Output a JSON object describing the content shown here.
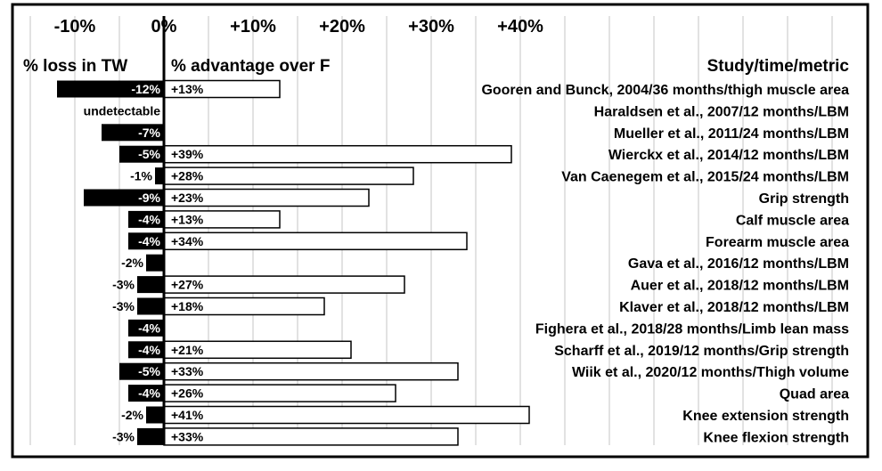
{
  "chart_data": {
    "type": "bar",
    "orientation": "horizontal",
    "x_tick_labels": [
      "-10%",
      "0%",
      "+10%",
      "+20%",
      "+30%",
      "+40%"
    ],
    "x_ticks": [
      -10,
      0,
      10,
      20,
      30,
      40
    ],
    "xlim": [
      -15,
      78
    ],
    "grid": "vertical",
    "header_left": "% loss in TW",
    "header_middle": "% advantage over F",
    "header_right": "Study/time/metric",
    "categories": [
      "Gooren and Bunck, 2004/36 months/thigh muscle area",
      "Haraldsen et al., 2007/12 months/LBM",
      "Mueller et al., 2011/24 months/LBM",
      "Wierckx et al., 2014/12 months/LBM",
      "Van Caenegem et al., 2015/24 months/LBM",
      "Grip strength",
      "Calf muscle area",
      "Forearm muscle area",
      "Gava et al., 2016/12 months/LBM",
      "Auer et al., 2018/12 months/LBM",
      "Klaver et al., 2018/12 months/LBM",
      "Fighera et al., 2018/28 months/Limb lean mass",
      "Scharff et al., 2019/12 months/Grip strength",
      "Wiik et al., 2020/12 months/Thigh volume",
      "Quad area",
      "Knee extension strength",
      "Knee flexion strength"
    ],
    "series": [
      {
        "name": "% loss in TW",
        "color": "#000000",
        "values": [
          -12,
          null,
          -7,
          -5,
          -1,
          -9,
          -4,
          -4,
          -2,
          -3,
          -3,
          -4,
          -4,
          -5,
          -4,
          -2,
          -3
        ],
        "labels": [
          "-12%",
          "undetectable",
          "-7%",
          "-5%",
          "-1%",
          "-9%",
          "-4%",
          "-4%",
          "-2%",
          "-3%",
          "-3%",
          "-4%",
          "-4%",
          "-5%",
          "-4%",
          "-2%",
          "-3%"
        ]
      },
      {
        "name": "% advantage over F",
        "color": "#ffffff",
        "values": [
          13,
          null,
          null,
          39,
          28,
          23,
          13,
          34,
          null,
          27,
          18,
          null,
          21,
          33,
          26,
          41,
          33
        ],
        "labels": [
          "+13%",
          "",
          "",
          "+39%",
          "+28%",
          "+23%",
          "+13%",
          "+34%",
          "",
          "+27%",
          "+18%",
          "",
          "+21%",
          "+33%",
          "+26%",
          "+41%",
          "+33%"
        ]
      }
    ]
  }
}
